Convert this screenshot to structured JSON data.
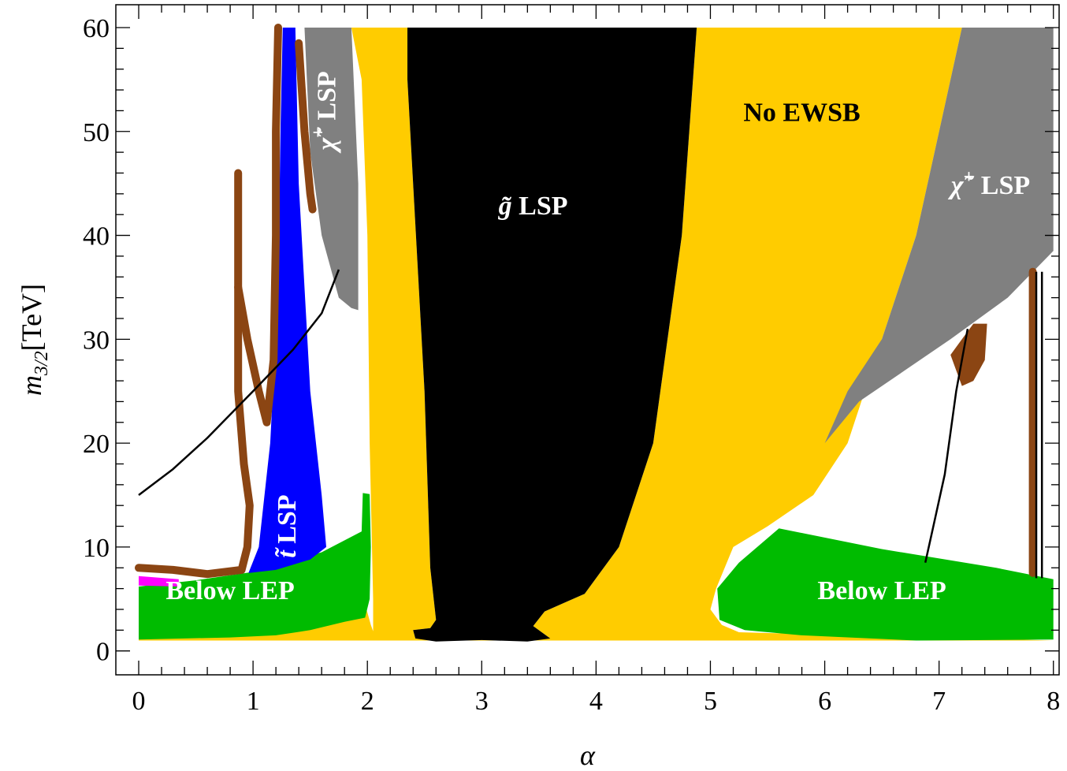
{
  "chart_data": {
    "type": "area",
    "title": "",
    "xlabel": "α",
    "ylabel_main": "m",
    "ylabel_sub": "3/2",
    "ylabel_unit": "[TeV]",
    "xlim": [
      -0.2,
      8.05
    ],
    "ylim": [
      -2.3,
      62.2
    ],
    "x_ticks": [
      0,
      1,
      2,
      3,
      4,
      5,
      6,
      7,
      8
    ],
    "y_ticks": [
      0,
      10,
      20,
      30,
      40,
      50,
      60
    ],
    "grid": false,
    "colors": {
      "gold": "#FFCC00",
      "black": "#000000",
      "green": "#00BB00",
      "gray": "#808080",
      "blue": "#0000FF",
      "brown": "#8B4513",
      "magenta": "#FF00FF",
      "white_text": "#FFFFFF"
    },
    "regions": [
      {
        "name": "No EWSB",
        "color": "gold",
        "points": [
          [
            1.86,
            60
          ],
          [
            2.35,
            60
          ],
          [
            2.35,
            55
          ],
          [
            2.5,
            25
          ],
          [
            2.55,
            8
          ],
          [
            2.6,
            3
          ],
          [
            2.55,
            2.2
          ],
          [
            2.4,
            2
          ],
          [
            2.42,
            1.2
          ],
          [
            3.0,
            1.1
          ],
          [
            3.6,
            1.2
          ],
          [
            3.45,
            2.4
          ],
          [
            3.55,
            3.8
          ],
          [
            3.9,
            5.5
          ],
          [
            4.2,
            10
          ],
          [
            4.5,
            20
          ],
          [
            4.75,
            40
          ],
          [
            4.88,
            60
          ],
          [
            7.2,
            60
          ],
          [
            7.0,
            50
          ],
          [
            6.8,
            40
          ],
          [
            6.5,
            30
          ],
          [
            6.2,
            20
          ],
          [
            5.9,
            15
          ],
          [
            5.5,
            12
          ],
          [
            5.2,
            10
          ],
          [
            5.05,
            6
          ],
          [
            5.0,
            4
          ],
          [
            5.1,
            2.5
          ],
          [
            5.25,
            1.8
          ],
          [
            8.0,
            1.0
          ],
          [
            0,
            1.0
          ],
          [
            0,
            5.5
          ],
          [
            0.7,
            5.8
          ],
          [
            1.3,
            6.8
          ],
          [
            1.9,
            8.8
          ],
          [
            1.98,
            9.8
          ],
          [
            1.98,
            4.5
          ],
          [
            2.03,
            2.5
          ],
          [
            2.05,
            1.9
          ],
          [
            2.05,
            5
          ],
          [
            2.02,
            20
          ],
          [
            2.0,
            40
          ],
          [
            1.95,
            55
          ]
        ]
      },
      {
        "name": "g̃ LSP",
        "color": "black",
        "points": [
          [
            2.35,
            60
          ],
          [
            4.88,
            60
          ],
          [
            4.75,
            40
          ],
          [
            4.5,
            20
          ],
          [
            4.2,
            10
          ],
          [
            3.9,
            5.5
          ],
          [
            3.55,
            3.8
          ],
          [
            3.45,
            2.4
          ],
          [
            3.6,
            1.2
          ],
          [
            3.4,
            0.9
          ],
          [
            3.0,
            1.05
          ],
          [
            2.6,
            0.9
          ],
          [
            2.42,
            1.2
          ],
          [
            2.4,
            2
          ],
          [
            2.55,
            2.2
          ],
          [
            2.6,
            3
          ],
          [
            2.55,
            8
          ],
          [
            2.5,
            25
          ],
          [
            2.35,
            55
          ]
        ]
      },
      {
        "name": "Below LEP left",
        "color": "green",
        "points": [
          [
            0,
            6.2
          ],
          [
            0.5,
            6.8
          ],
          [
            1.0,
            7.6
          ],
          [
            1.6,
            9.5
          ],
          [
            1.95,
            11.5
          ],
          [
            1.96,
            15.2
          ],
          [
            2.02,
            15.1
          ],
          [
            2.03,
            10
          ],
          [
            2.02,
            5
          ],
          [
            1.98,
            3.2
          ],
          [
            1.8,
            2.8
          ],
          [
            1.5,
            2.0
          ],
          [
            1.2,
            1.5
          ],
          [
            0.8,
            1.3
          ],
          [
            0,
            1.1
          ]
        ]
      },
      {
        "name": "Below LEP right",
        "color": "green",
        "points": [
          [
            5.06,
            6.0
          ],
          [
            5.25,
            8.5
          ],
          [
            5.6,
            11.8
          ],
          [
            6.5,
            9.8
          ],
          [
            7.5,
            8.0
          ],
          [
            8.0,
            6.9
          ],
          [
            8.0,
            1.1
          ],
          [
            6.8,
            1.0
          ],
          [
            5.8,
            1.5
          ],
          [
            5.3,
            2.0
          ],
          [
            5.08,
            3.0
          ]
        ]
      },
      {
        "name": "χ̃+ LSP upper",
        "color": "gray",
        "points": [
          [
            1.45,
            60
          ],
          [
            1.86,
            60
          ],
          [
            1.88,
            55
          ],
          [
            1.92,
            45
          ],
          [
            1.92,
            32.8
          ],
          [
            1.86,
            33
          ],
          [
            1.75,
            34
          ],
          [
            1.6,
            40
          ],
          [
            1.5,
            48
          ]
        ]
      },
      {
        "name": "χ̃+ LSP right",
        "color": "gray",
        "points": [
          [
            7.2,
            60
          ],
          [
            8.0,
            60
          ],
          [
            8.0,
            38.5
          ],
          [
            7.6,
            34
          ],
          [
            7.1,
            30
          ],
          [
            6.7,
            27
          ],
          [
            6.3,
            24
          ],
          [
            6.0,
            20
          ],
          [
            6.2,
            25
          ],
          [
            6.5,
            30
          ],
          [
            6.8,
            40
          ],
          [
            7.0,
            50
          ]
        ]
      },
      {
        "name": "t̃ LSP",
        "color": "blue",
        "points": [
          [
            1.26,
            60
          ],
          [
            1.37,
            60
          ],
          [
            1.4,
            45
          ],
          [
            1.5,
            25
          ],
          [
            1.6,
            15
          ],
          [
            1.64,
            10
          ],
          [
            1.5,
            8.8
          ],
          [
            1.2,
            7.8
          ],
          [
            0.96,
            7.5
          ],
          [
            1.05,
            10
          ],
          [
            1.15,
            20
          ],
          [
            1.22,
            35
          ],
          [
            1.24,
            50
          ]
        ]
      },
      {
        "name": "magenta",
        "color": "magenta",
        "points": [
          [
            0,
            7.2
          ],
          [
            0.35,
            6.9
          ],
          [
            0.35,
            6.2
          ],
          [
            0,
            6.3
          ]
        ]
      }
    ],
    "brown_curves": [
      {
        "width": 10,
        "points": [
          [
            0,
            8
          ],
          [
            0.3,
            7.8
          ],
          [
            0.6,
            7.4
          ],
          [
            0.9,
            7.8
          ],
          [
            0.95,
            10
          ],
          [
            0.97,
            14
          ],
          [
            0.92,
            18
          ],
          [
            0.87,
            25
          ],
          [
            0.87,
            35
          ],
          [
            0.87,
            46
          ]
        ]
      },
      {
        "width": 10,
        "points": [
          [
            0.87,
            35
          ],
          [
            0.95,
            30
          ],
          [
            1.05,
            25
          ],
          [
            1.12,
            22
          ],
          [
            1.18,
            28
          ],
          [
            1.2,
            40
          ],
          [
            1.2,
            50
          ],
          [
            1.22,
            60
          ]
        ]
      },
      {
        "width": 10,
        "points": [
          [
            1.4,
            58.5
          ],
          [
            1.45,
            50
          ],
          [
            1.5,
            44
          ],
          [
            1.52,
            42.5
          ]
        ]
      },
      {
        "width": 10,
        "points": [
          [
            7.82,
            7.5
          ],
          [
            7.82,
            36.5
          ]
        ]
      }
    ],
    "brown_blob": {
      "points": [
        [
          7.1,
          28.5
        ],
        [
          7.2,
          30
        ],
        [
          7.3,
          31.5
        ],
        [
          7.42,
          31.5
        ],
        [
          7.4,
          28
        ],
        [
          7.3,
          26
        ],
        [
          7.2,
          25.5
        ],
        [
          7.15,
          27
        ]
      ]
    },
    "black_curves": [
      {
        "points": [
          [
            0,
            15
          ],
          [
            0.3,
            17.5
          ],
          [
            0.6,
            20.5
          ],
          [
            1.0,
            25
          ],
          [
            1.35,
            29
          ],
          [
            1.6,
            32.5
          ],
          [
            1.75,
            36.7
          ]
        ]
      },
      {
        "points": [
          [
            6.88,
            8.5
          ],
          [
            6.95,
            12
          ],
          [
            7.05,
            17
          ],
          [
            7.15,
            25
          ],
          [
            7.25,
            31
          ]
        ]
      },
      {
        "points": [
          [
            7.85,
            7
          ],
          [
            7.85,
            36.5
          ]
        ]
      },
      {
        "points": [
          [
            7.9,
            7
          ],
          [
            7.9,
            36.5
          ]
        ]
      }
    ],
    "labels": [
      {
        "text": "Below LEP",
        "x": 0.8,
        "y": 5,
        "color": "white_text",
        "rotate": 0
      },
      {
        "text": "Below LEP",
        "x": 6.5,
        "y": 5,
        "color": "white_text",
        "rotate": 0
      },
      {
        "text": "No EWSB",
        "x": 5.8,
        "y": 51,
        "color": "black",
        "rotate": 0
      },
      {
        "text_main": "g̃",
        "text_rest": " LSP",
        "x": 3.45,
        "y": 42,
        "color": "white_text",
        "rotate": 0
      },
      {
        "text_main": "χ̃",
        "sup": "+",
        "text_rest": " LSP",
        "x": 7.45,
        "y": 44,
        "color": "white_text",
        "rotate": 0
      },
      {
        "text_main": "χ̃",
        "sup": "+",
        "text_rest": " LSP",
        "x": 1.72,
        "y": 52,
        "color": "white_text",
        "rotate": -90
      },
      {
        "text_main": "t̃",
        "text_rest": " LSP",
        "x": 1.37,
        "y": 12,
        "color": "white_text",
        "rotate": -90
      }
    ]
  }
}
